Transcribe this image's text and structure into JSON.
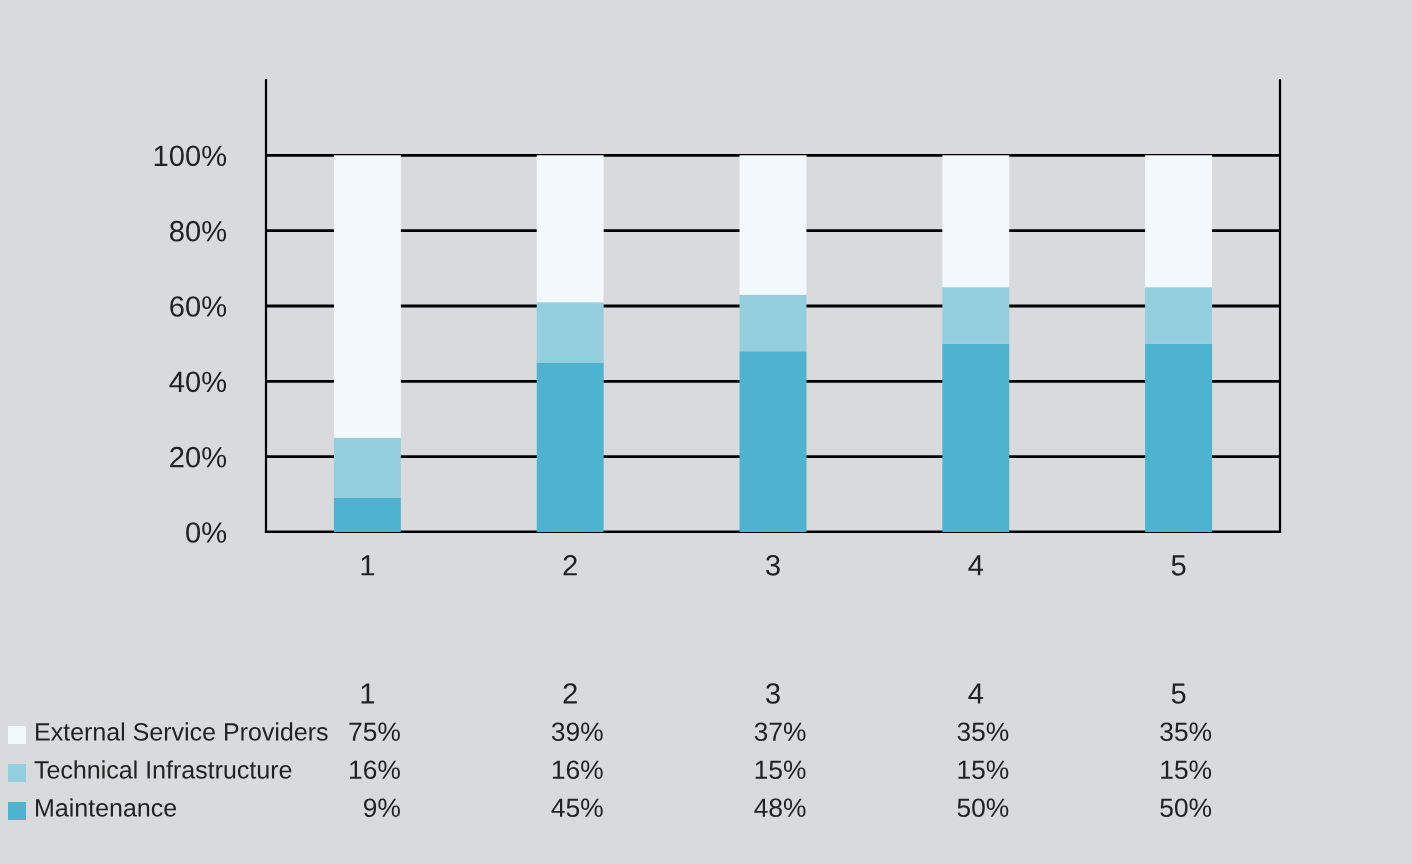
{
  "chart_data": {
    "type": "bar",
    "stacked": true,
    "categories": [
      "1",
      "2",
      "3",
      "4",
      "5"
    ],
    "series": [
      {
        "name": "Maintenance",
        "color": "#4db3cf",
        "values": [
          9,
          45,
          48,
          50,
          50
        ],
        "value_labels": [
          "9%",
          "45%",
          "48%",
          "50%",
          "50%"
        ]
      },
      {
        "name": "Technical Infrastructure",
        "color": "#94cfe0",
        "values": [
          16,
          16,
          15,
          15,
          15
        ],
        "value_labels": [
          "16%",
          "16%",
          "15%",
          "15%",
          "15%"
        ]
      },
      {
        "name": "External Service Providers",
        "color": "#f2f8fc",
        "values": [
          75,
          39,
          37,
          35,
          35
        ],
        "value_labels": [
          "75%",
          "39%",
          "37%",
          "35%",
          "35%"
        ]
      }
    ],
    "ylim": [
      0,
      120
    ],
    "yticks": [
      {
        "value": 0,
        "label": "0%"
      },
      {
        "value": 20,
        "label": "20%"
      },
      {
        "value": 40,
        "label": "40%"
      },
      {
        "value": 60,
        "label": "60%"
      },
      {
        "value": 80,
        "label": "80%"
      },
      {
        "value": 100,
        "label": "100%"
      }
    ],
    "grid": "y",
    "legend": "bottom"
  }
}
